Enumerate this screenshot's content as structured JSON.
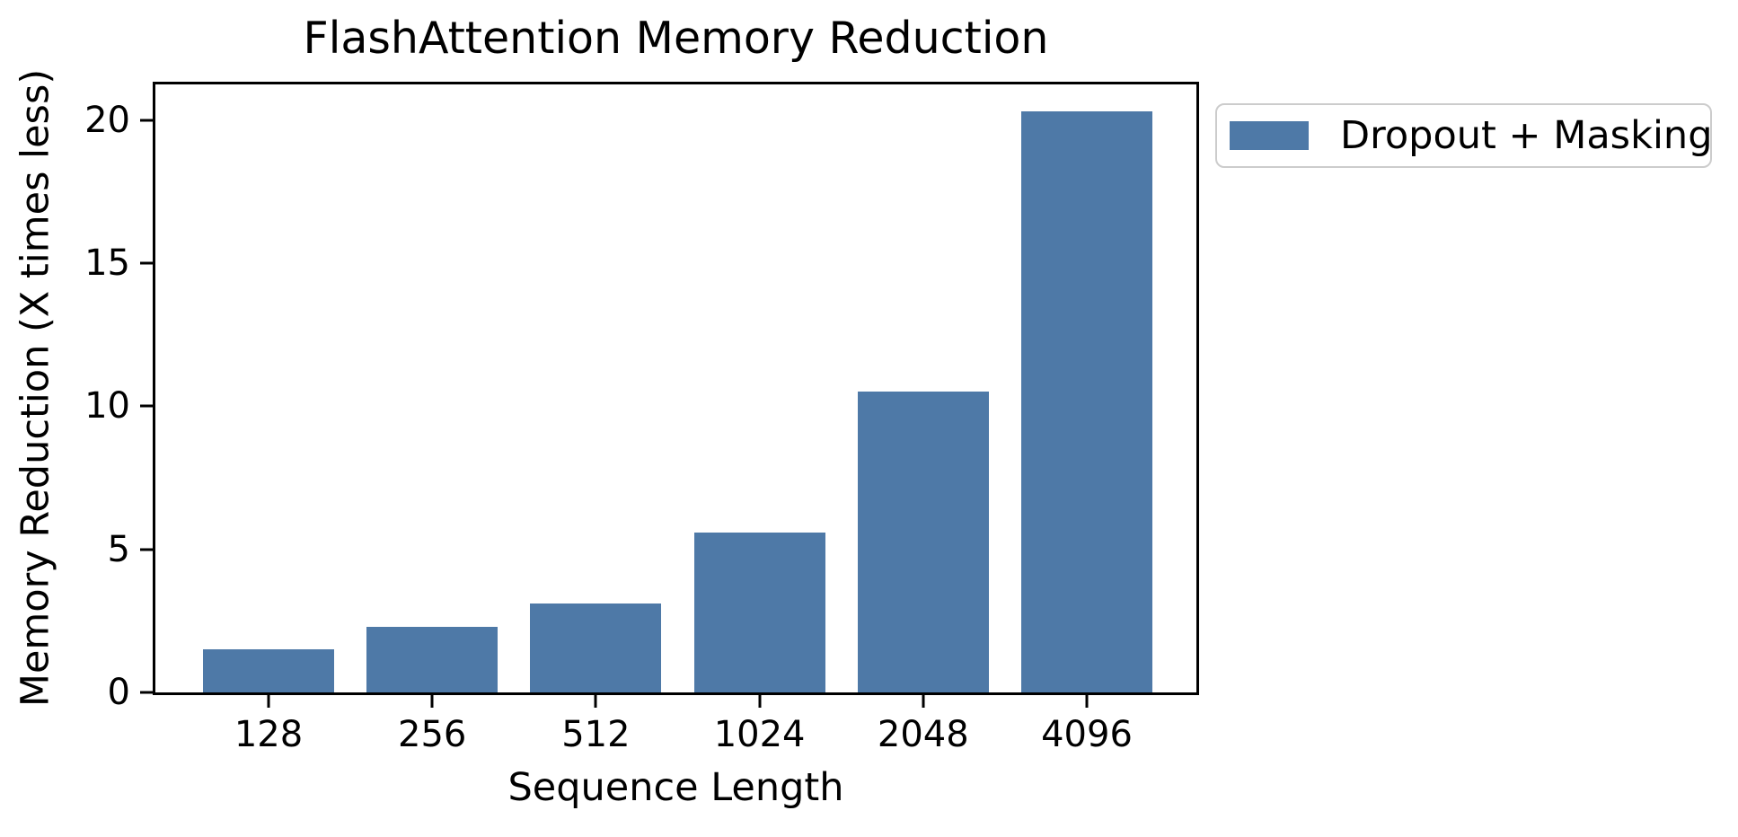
{
  "chart_data": {
    "type": "bar",
    "title": "FlashAttention Memory Reduction",
    "xlabel": "Sequence Length",
    "ylabel": "Memory Reduction (X times less)",
    "categories": [
      "128",
      "256",
      "512",
      "1024",
      "2048",
      "4096"
    ],
    "series": [
      {
        "name": "Dropout + Masking",
        "values": [
          1.5,
          2.3,
          3.1,
          5.6,
          10.5,
          20.3
        ],
        "color": "#4E79A7"
      }
    ],
    "yticks": [
      0,
      5,
      10,
      15,
      20
    ],
    "ylim": [
      0,
      21.25
    ],
    "grid": false,
    "legend_position": "outside upper right"
  },
  "legend": {
    "items": [
      {
        "label": "Dropout + Masking",
        "color": "#4E79A7"
      }
    ]
  },
  "colors": {
    "bar": "#4E79A7",
    "axis": "#000000",
    "text": "#000000",
    "legend_border": "#cccccc",
    "background": "#ffffff"
  }
}
